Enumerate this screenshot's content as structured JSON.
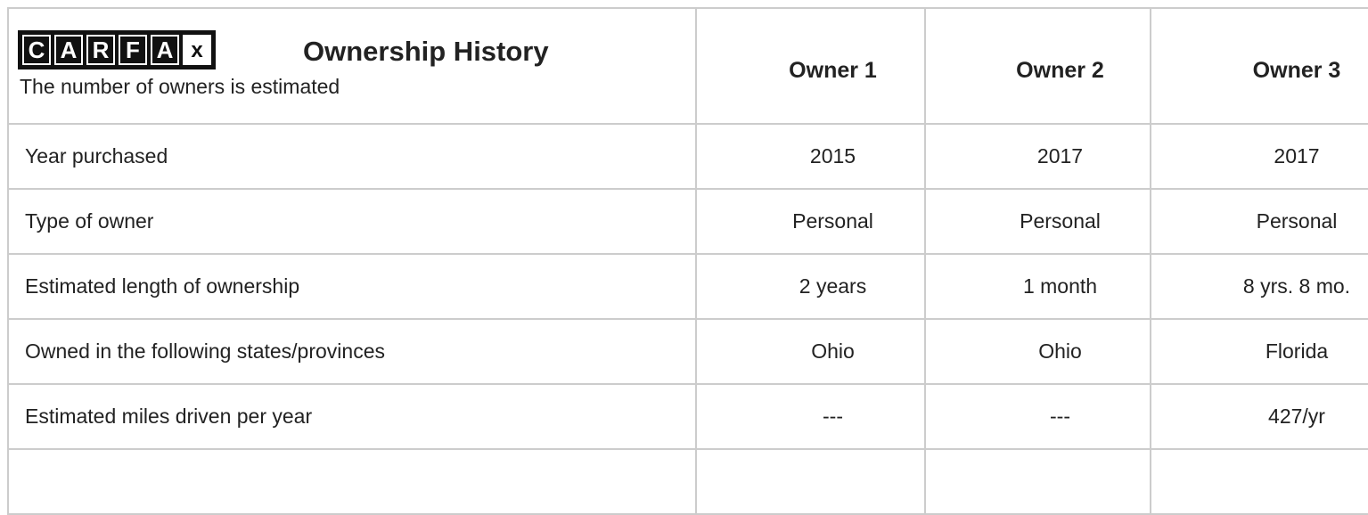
{
  "header": {
    "logo": [
      "C",
      "A",
      "R",
      "F",
      "A",
      "x"
    ],
    "title": "Ownership History",
    "subtitle": "The number of owners is estimated",
    "owners": [
      "Owner 1",
      "Owner 2",
      "Owner 3"
    ]
  },
  "rows": [
    {
      "label": "Year purchased",
      "values": [
        "2015",
        "2017",
        "2017"
      ]
    },
    {
      "label": "Type of owner",
      "values": [
        "Personal",
        "Personal",
        "Personal"
      ]
    },
    {
      "label": "Estimated length of ownership",
      "values": [
        "2 years",
        "1 month",
        "8 yrs. 8 mo."
      ]
    },
    {
      "label": "Owned in the following states/provinces",
      "values": [
        "Ohio",
        "Ohio",
        "Florida"
      ]
    },
    {
      "label": "Estimated miles driven per year",
      "values": [
        "---",
        "---",
        "427/yr"
      ]
    }
  ]
}
